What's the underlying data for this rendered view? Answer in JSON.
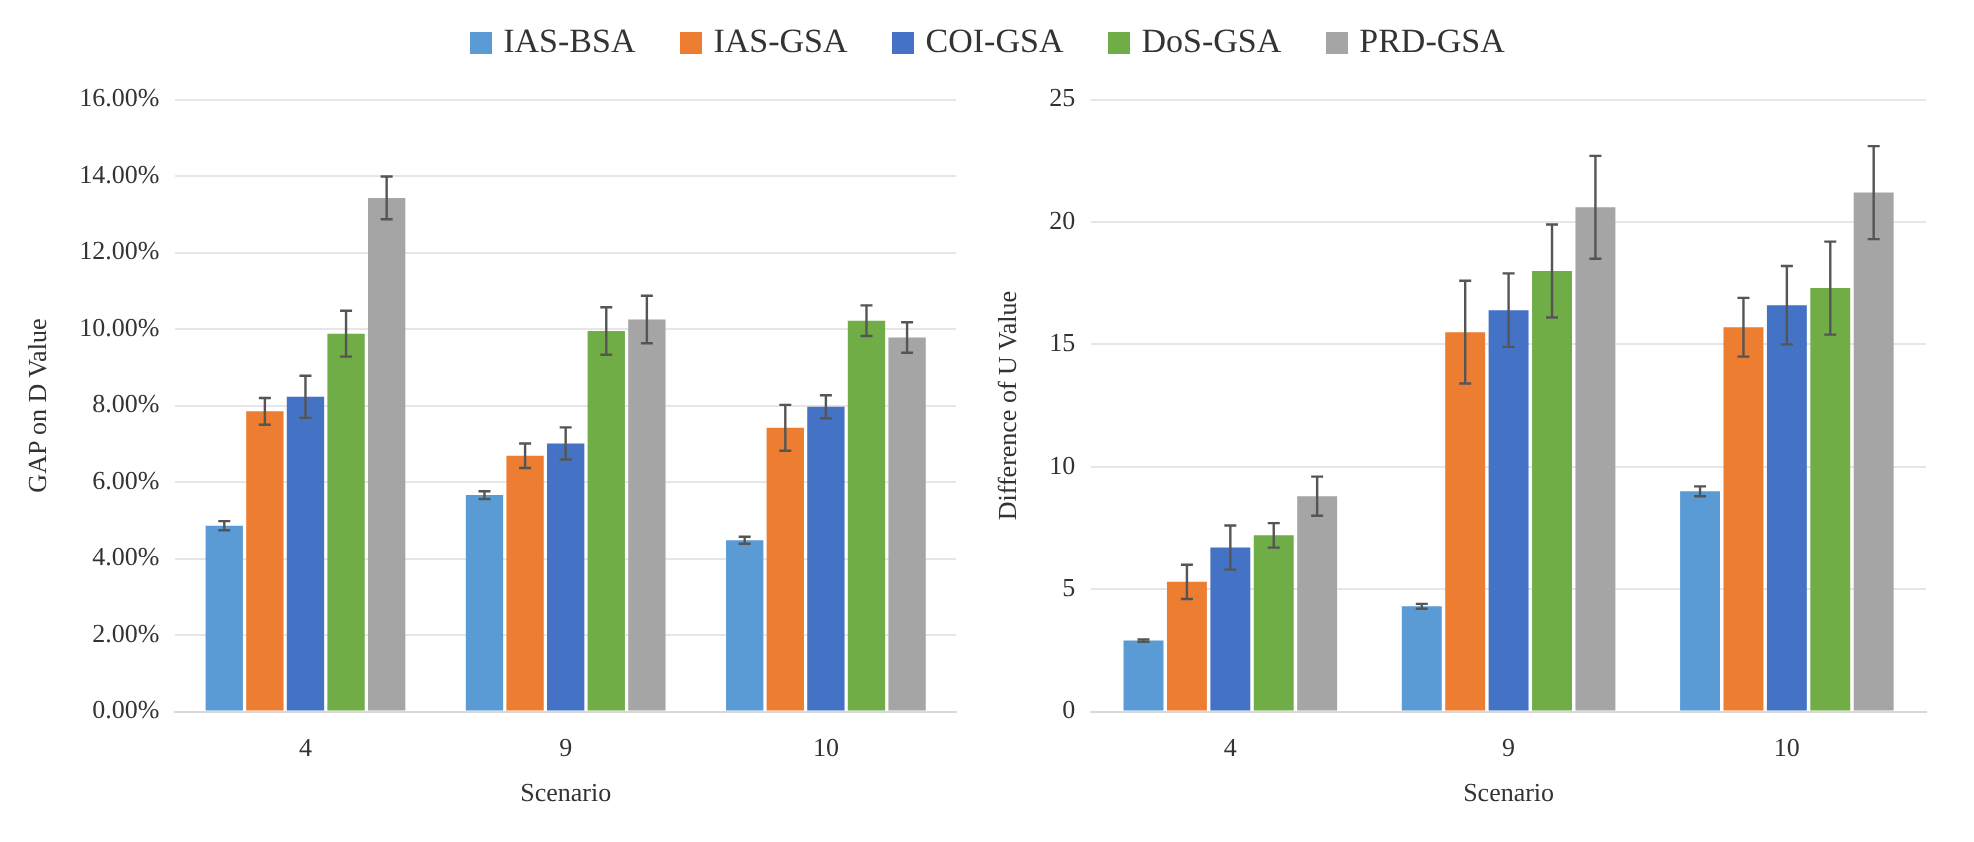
{
  "chart_data": [
    {
      "type": "bar",
      "xlabel": "Scenario",
      "ylabel": "GAP on D Value",
      "categories": [
        "4",
        "9",
        "10"
      ],
      "legend": "top",
      "grid": "y",
      "ylim": [
        0,
        16
      ],
      "yticks": [
        {
          "value": 0,
          "label": "0.00%"
        },
        {
          "value": 2,
          "label": "2.00%"
        },
        {
          "value": 4,
          "label": "4.00%"
        },
        {
          "value": 6,
          "label": "6.00%"
        },
        {
          "value": 8,
          "label": "8.00%"
        },
        {
          "value": 10,
          "label": "10.00%"
        },
        {
          "value": 12,
          "label": "12.00%"
        },
        {
          "value": 14,
          "label": "14.00%"
        },
        {
          "value": 16,
          "label": "16.00%"
        }
      ],
      "series": [
        {
          "name": "IAS-BSA",
          "color": "#5b9bd5",
          "values": [
            4.86,
            5.66,
            4.48
          ],
          "errors": [
            0.12,
            0.1,
            0.09
          ]
        },
        {
          "name": "IAS-GSA",
          "color": "#ed7d31",
          "values": [
            7.85,
            6.69,
            7.42
          ],
          "errors": [
            0.35,
            0.32,
            0.6
          ]
        },
        {
          "name": "COI-GSA",
          "color": "#4472c4",
          "values": [
            8.23,
            7.01,
            7.97
          ],
          "errors": [
            0.55,
            0.42,
            0.3
          ]
        },
        {
          "name": "DoS-GSA",
          "color": "#70ad47",
          "values": [
            9.88,
            9.95,
            10.22
          ],
          "errors": [
            0.6,
            0.62,
            0.4
          ]
        },
        {
          "name": "PRD-GSA",
          "color": "#a5a5a5",
          "values": [
            13.43,
            10.25,
            9.78
          ],
          "errors": [
            0.56,
            0.62,
            0.4
          ]
        }
      ]
    },
    {
      "type": "bar",
      "xlabel": "Scenario",
      "ylabel": "Difference of U Value",
      "categories": [
        "4",
        "9",
        "10"
      ],
      "grid": "y",
      "ylim": [
        0,
        25
      ],
      "yticks": [
        0,
        5,
        10,
        15,
        20,
        25
      ],
      "series": [
        {
          "color": "#5b9bd5",
          "values": [
            2.9,
            4.3,
            9.0
          ],
          "errors": [
            0.05,
            0.1,
            0.2
          ]
        },
        {
          "color": "#ed7d31",
          "values": [
            5.3,
            15.5,
            15.7
          ],
          "errors": [
            0.7,
            2.1,
            1.2
          ]
        },
        {
          "color": "#4472c4",
          "values": [
            6.7,
            16.4,
            16.6
          ],
          "errors": [
            0.9,
            1.5,
            1.6
          ]
        },
        {
          "color": "#70ad47",
          "values": [
            7.2,
            18.0,
            17.3
          ],
          "errors": [
            0.5,
            1.9,
            1.9
          ]
        },
        {
          "color": "#a5a5a5",
          "values": [
            8.8,
            20.6,
            21.2
          ],
          "errors": [
            0.8,
            2.1,
            1.9
          ]
        }
      ]
    }
  ]
}
